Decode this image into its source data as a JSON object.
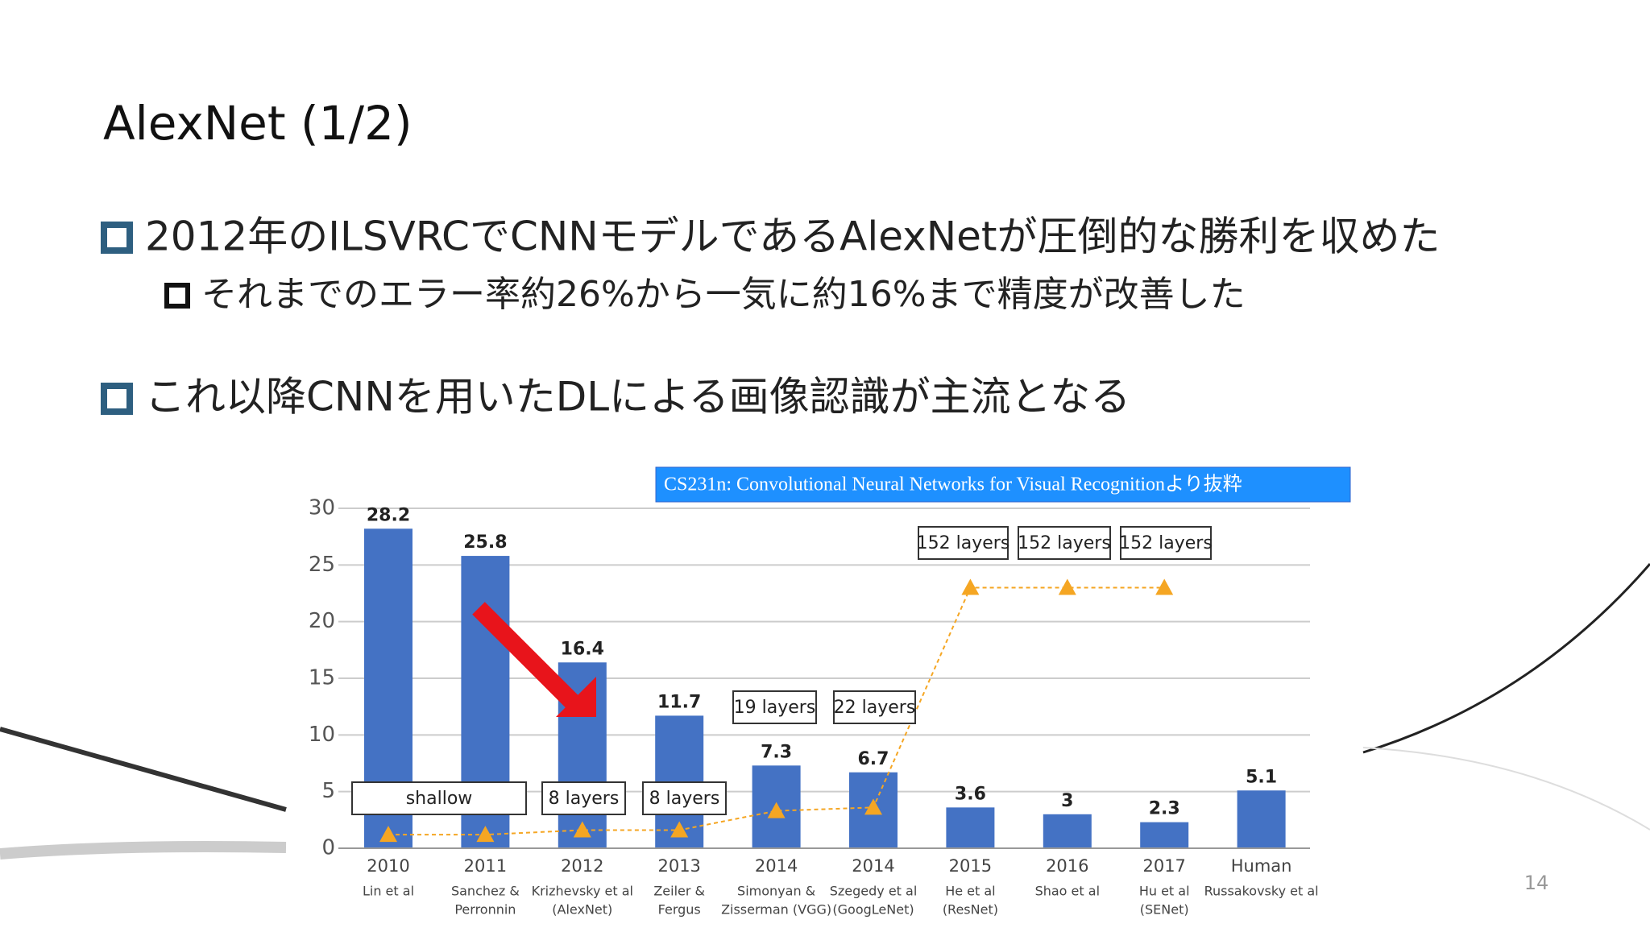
{
  "slide": {
    "title": "AlexNet (1/2)",
    "bullets": [
      "2012年のILSVRCでCNNモデルであるAlexNetが圧倒的な勝利を収めた",
      "それまでのエラー率約26%から一気に約16%まで精度が改善した",
      "これ以降CNNを用いたDLによる画像認識が主流となる"
    ],
    "page_number": "14"
  },
  "chart_data": {
    "type": "bar",
    "title": "CS231n: Convolutional Neural Networks for Visual Recognitionより抜粋",
    "categories": [
      "2010",
      "2011",
      "2012",
      "2013",
      "2014",
      "2014",
      "2015",
      "2016",
      "2017",
      "Human"
    ],
    "sublabels": [
      [
        "Lin et al"
      ],
      [
        "Sanchez &",
        "Perronnin"
      ],
      [
        "Krizhevsky et al",
        "(AlexNet)"
      ],
      [
        "Zeiler &",
        "Fergus"
      ],
      [
        "Simonyan &",
        "Zisserman (VGG)"
      ],
      [
        "Szegedy et al",
        "(GoogLeNet)"
      ],
      [
        "He et al",
        "(ResNet)"
      ],
      [
        "Shao et al"
      ],
      [
        "Hu et al",
        "(SENet)"
      ],
      [
        "Russakovsky et al"
      ]
    ],
    "series": [
      {
        "color": "#4472c4",
        "values": [
          28.2,
          25.8,
          16.4,
          11.7,
          7.3,
          6.7,
          3.6,
          3,
          2.3,
          5.1
        ]
      },
      {
        "type": "line",
        "color": "#f5a623",
        "values": [
          1.2,
          1.2,
          1.6,
          1.6,
          3.3,
          3.6,
          23,
          23,
          23,
          null
        ]
      }
    ],
    "annotations": [
      "shallow",
      "8 layers",
      "8 layers",
      "19 layers",
      "22 layers",
      "152 layers",
      "152 layers",
      "152 layers"
    ],
    "ylim": [
      0,
      30
    ],
    "yticks": [
      0,
      5,
      10,
      15,
      20,
      25,
      30
    ],
    "grid": true
  }
}
